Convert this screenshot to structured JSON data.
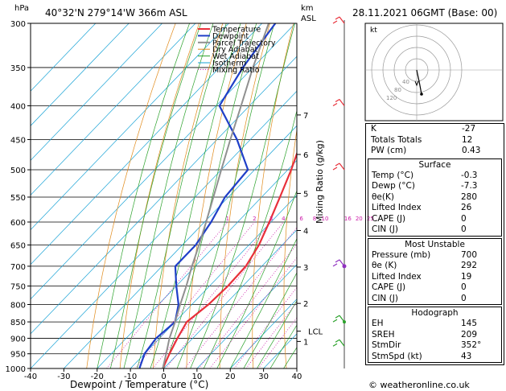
{
  "header": {
    "location": "40°32'N  279°14'W  366m  ASL",
    "datetime": "28.11.2021  06GMT  (Base: 00)",
    "hpa_label": "hPa",
    "km_label": "km",
    "asl_label": "ASL",
    "xlabel": "Dewpoint / Temperature (°C)",
    "ylabel_right": "Mixing Ratio (g/kg)"
  },
  "chart_data": {
    "type": "line",
    "title": "Skew-T log-P sounding",
    "xlabel": "Dewpoint / Temperature (°C)",
    "ylabel": "hPa",
    "xlim": [
      -40,
      40
    ],
    "ylim": [
      1000,
      300
    ],
    "x_ticks": [
      "-40",
      "-30",
      "-20",
      "-10",
      "0",
      "10",
      "20",
      "30",
      "40"
    ],
    "p_ticks": [
      "300",
      "350",
      "400",
      "450",
      "500",
      "550",
      "600",
      "650",
      "700",
      "750",
      "800",
      "850",
      "900",
      "950",
      "1000"
    ],
    "km_ticks": [
      {
        "km": "1",
        "p": 910
      },
      {
        "km": "2",
        "p": 797
      },
      {
        "km": "3",
        "p": 702
      },
      {
        "km": "4",
        "p": 618
      },
      {
        "km": "5",
        "p": 543
      },
      {
        "km": "6",
        "p": 474
      },
      {
        "km": "7",
        "p": 413
      }
    ],
    "lcl": {
      "label": "LCL",
      "p": 878
    },
    "mixing_ratio_labels": [
      "1",
      "2",
      "3",
      "4",
      "6",
      "8",
      "10",
      "16",
      "20",
      "25"
    ],
    "legend": [
      "Temperature",
      "Dewpoint",
      "Parcel Trajectory",
      "Dry Adiabat",
      "Wet Adiabat",
      "Isotherm",
      "Mixing Ratio"
    ],
    "series": [
      {
        "name": "Temperature",
        "color": "#e8303a",
        "points": [
          [
            1000,
            -0.3
          ],
          [
            950,
            -2.5
          ],
          [
            900,
            -4.6
          ],
          [
            850,
            -6.5
          ],
          [
            800,
            -5.0
          ],
          [
            750,
            -4.5
          ],
          [
            700,
            -4.8
          ],
          [
            650,
            -7
          ],
          [
            600,
            -10.5
          ],
          [
            550,
            -14.5
          ],
          [
            500,
            -19
          ],
          [
            450,
            -24.5
          ],
          [
            400,
            -30.5
          ],
          [
            350,
            -37.5
          ],
          [
            300,
            -45
          ]
        ]
      },
      {
        "name": "Dewpoint",
        "color": "#1f3fc8",
        "points": [
          [
            1000,
            -7.3
          ],
          [
            950,
            -10
          ],
          [
            900,
            -11
          ],
          [
            850,
            -10
          ],
          [
            800,
            -14
          ],
          [
            750,
            -20
          ],
          [
            700,
            -26
          ],
          [
            650,
            -26
          ],
          [
            600,
            -28
          ],
          [
            550,
            -31
          ],
          [
            500,
            -32
          ],
          [
            450,
            -44
          ],
          [
            400,
            -59
          ],
          [
            350,
            -63
          ],
          [
            300,
            -66
          ]
        ]
      },
      {
        "name": "Parcel Trajectory",
        "color": "#909090",
        "points": [
          [
            1000,
            -0.3
          ],
          [
            950,
            -3.5
          ],
          [
            900,
            -7
          ],
          [
            878,
            -8.3
          ],
          [
            850,
            -10
          ],
          [
            800,
            -13.5
          ],
          [
            750,
            -17
          ],
          [
            700,
            -21
          ],
          [
            650,
            -25
          ],
          [
            600,
            -29.5
          ],
          [
            550,
            -34.5
          ],
          [
            500,
            -40
          ],
          [
            450,
            -46
          ],
          [
            400,
            -52.5
          ],
          [
            350,
            -60
          ],
          [
            300,
            -68
          ]
        ]
      }
    ],
    "hodograph": {
      "rings_kt": [
        20,
        40,
        60,
        80
      ],
      "label": "kt",
      "ring_labels": [
        "40",
        "80",
        "120"
      ]
    }
  },
  "indices": {
    "rows": [
      {
        "label": "K",
        "value": "-27"
      },
      {
        "label": "Totals Totals",
        "value": "12"
      },
      {
        "label": "PW (cm)",
        "value": "0.43"
      }
    ]
  },
  "surface": {
    "title": "Surface",
    "rows": [
      {
        "label": "Temp (°C)",
        "value": "-0.3"
      },
      {
        "label": "Dewp (°C)",
        "value": "-7.3"
      },
      {
        "label": "θe(K)",
        "value": "280"
      },
      {
        "label": "Lifted Index",
        "value": "26"
      },
      {
        "label": "CAPE (J)",
        "value": "0"
      },
      {
        "label": "CIN (J)",
        "value": "0"
      }
    ]
  },
  "unstable": {
    "title": "Most Unstable",
    "rows": [
      {
        "label": "Pressure (mb)",
        "value": "700"
      },
      {
        "label": "θe (K)",
        "value": "292"
      },
      {
        "label": "Lifted Index",
        "value": "19"
      },
      {
        "label": "CAPE (J)",
        "value": "0"
      },
      {
        "label": "CIN (J)",
        "value": "0"
      }
    ]
  },
  "hodo_stats": {
    "title": "Hodograph",
    "rows": [
      {
        "label": "EH",
        "value": "145"
      },
      {
        "label": "SREH",
        "value": "209"
      },
      {
        "label": "StmDir",
        "value": "352°"
      },
      {
        "label": "StmSpd (kt)",
        "value": "43"
      }
    ]
  },
  "footer": "© weatheronline.co.uk",
  "colors": {
    "temp": "#e8303a",
    "dew": "#1f3fc8",
    "parcel": "#909090",
    "dry": "#e08a1a",
    "wet": "#2aa12a",
    "iso": "#19a3d6",
    "mix": "#cc1aa8"
  }
}
